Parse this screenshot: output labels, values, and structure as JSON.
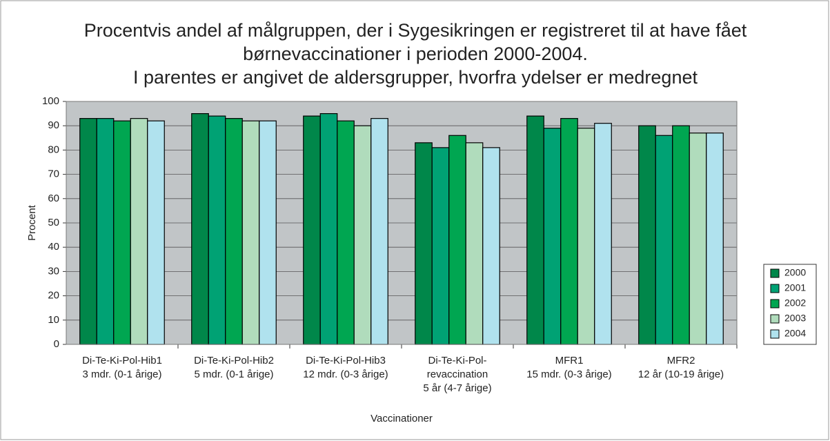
{
  "chart_data": {
    "type": "bar",
    "title": [
      "Procentvis andel af målgruppen, der i Sygesikringen er registreret til at have fået",
      "børnevaccinationer i perioden 2000-2004.",
      "I parentes er angivet de aldersgrupper, hvorfra ydelser er medregnet"
    ],
    "x_label": "Vaccinationer",
    "y_label": "Procent",
    "categories": [
      [
        "Di-Te-Ki-Pol-Hib1",
        "3 mdr. (0-1 årige)"
      ],
      [
        "Di-Te-Ki-Pol-Hib2",
        "5 mdr. (0-1 årige)"
      ],
      [
        "Di-Te-Ki-Pol-Hib3",
        "12 mdr. (0-3 årige)"
      ],
      [
        "Di-Te-Ki-Pol-",
        "revaccination",
        "5 år (4-7 årige)"
      ],
      [
        "MFR1",
        "15 mdr. (0-3 årige)"
      ],
      [
        "MFR2",
        "12 år (10-19 årige)"
      ]
    ],
    "series": [
      {
        "name": "2000",
        "color": "#00874a",
        "values": [
          93,
          95,
          94,
          83,
          94,
          90
        ]
      },
      {
        "name": "2001",
        "color": "#00a274",
        "values": [
          93,
          94,
          95,
          81,
          89,
          86
        ]
      },
      {
        "name": "2002",
        "color": "#00a651",
        "values": [
          92,
          93,
          92,
          86,
          93,
          90
        ]
      },
      {
        "name": "2003",
        "color": "#b0dcbc",
        "values": [
          93,
          92,
          90,
          83,
          89,
          87
        ]
      },
      {
        "name": "2004",
        "color": "#b0e2ee",
        "values": [
          92,
          92,
          93,
          81,
          91,
          87
        ]
      }
    ],
    "ylim": [
      0,
      100
    ],
    "yticks": [
      0,
      10,
      20,
      30,
      40,
      50,
      60,
      70,
      80,
      90,
      100
    ],
    "grid": true,
    "legend": "right"
  }
}
